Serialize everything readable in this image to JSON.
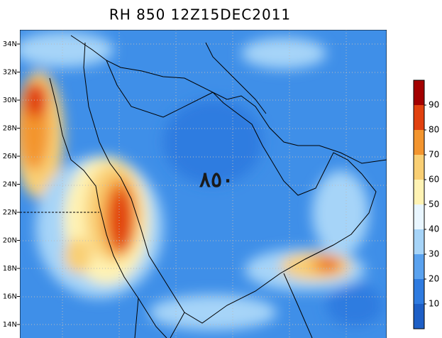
{
  "title": "RH 850 12Z15DEC2011",
  "annotation": "٨٥٠",
  "lat_labels": [
    "34N",
    "32N",
    "30N",
    "28N",
    "26N",
    "24N",
    "22N",
    "20N",
    "18N",
    "16N",
    "14N"
  ],
  "colorbar": {
    "range": [
      0,
      100
    ],
    "ticks": [
      10,
      20,
      30,
      40,
      50,
      60,
      70,
      80,
      90
    ],
    "colors": [
      "#1e5fc6",
      "#2f7be0",
      "#5aa2ef",
      "#a6d4f8",
      "#e9f6ff",
      "#fff3b4",
      "#f9cf74",
      "#f3952f",
      "#e1410f",
      "#a30000"
    ]
  }
}
